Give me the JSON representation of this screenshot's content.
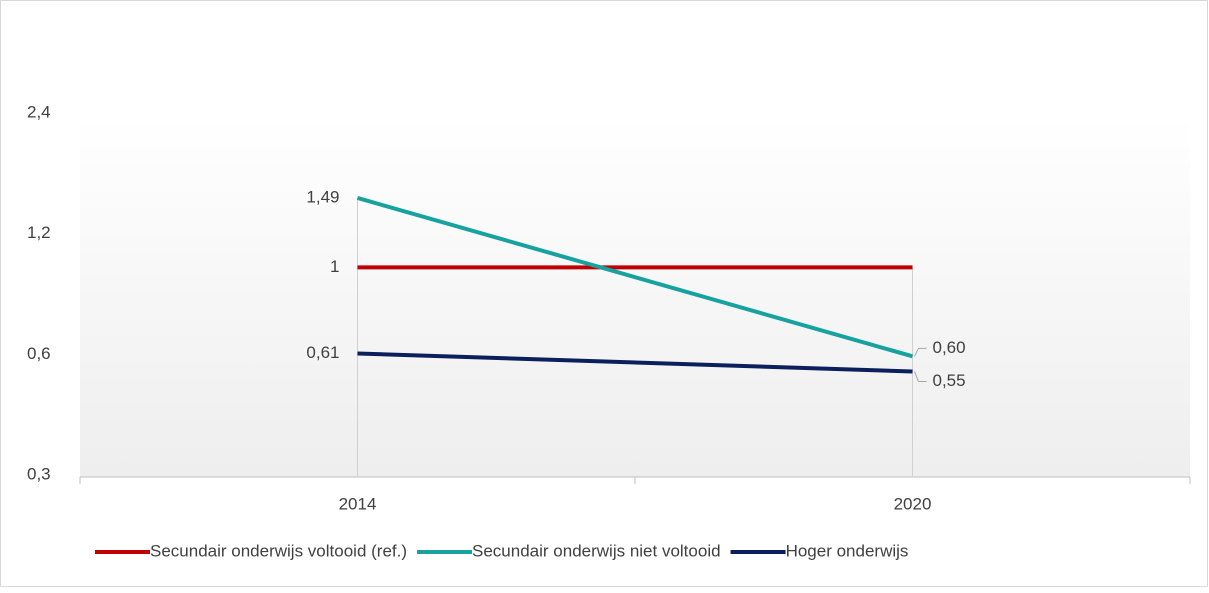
{
  "chart_data": {
    "type": "line",
    "categories": [
      "2014",
      "2020"
    ],
    "series": [
      {
        "name": "Secundair onderwijs voltooid (ref.)",
        "color": "#c00000",
        "values": [
          1,
          1
        ],
        "value_labels": [
          "1",
          null
        ]
      },
      {
        "name": "Secundair onderwijs niet voltooid",
        "color": "#17a2a0",
        "values": [
          1.49,
          0.6
        ],
        "value_labels": [
          "1,49",
          "0,60"
        ]
      },
      {
        "name": "Hoger onderwijs",
        "color": "#0b1f5c",
        "values": [
          0.61,
          0.55
        ],
        "value_labels": [
          "0,61",
          "0,55"
        ]
      }
    ],
    "ylim": [
      0.3,
      2.4
    ],
    "yticks": [
      {
        "value": 0.3,
        "label": "0,3"
      },
      {
        "value": 0.6,
        "label": "0,6"
      },
      {
        "value": 1.2,
        "label": "1,2"
      },
      {
        "value": 2.4,
        "label": "2,4"
      }
    ],
    "yscale": "log",
    "legend": "bottom"
  }
}
